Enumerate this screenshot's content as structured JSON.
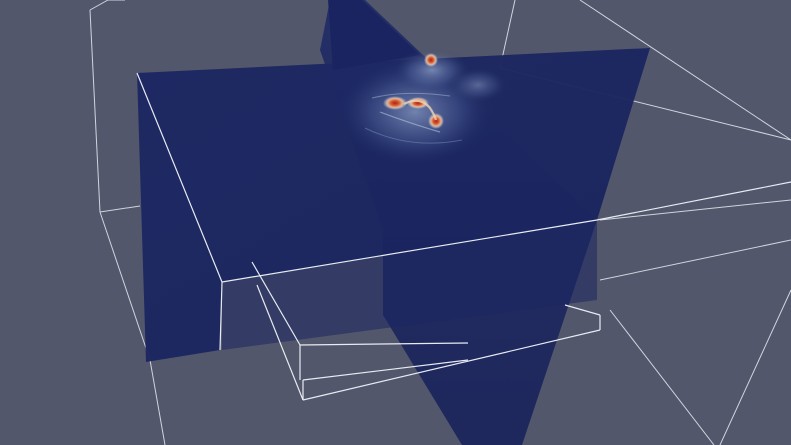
{
  "viewport": {
    "background_color": "#52576b",
    "wireframe_color": "#e6e8ee",
    "slice_base_color": "#1b2660",
    "slice_dark_color": "#151f54",
    "hotspot_colors": {
      "core": "#c23a1c",
      "mid": "#e9b486",
      "halo": "#a7bfe0"
    },
    "objects": [
      {
        "name": "outline-box-outer"
      },
      {
        "name": "outline-box-inner"
      },
      {
        "name": "slice-plane-vertical"
      },
      {
        "name": "slice-plane-horizontal"
      },
      {
        "name": "field-hotspots"
      }
    ]
  }
}
